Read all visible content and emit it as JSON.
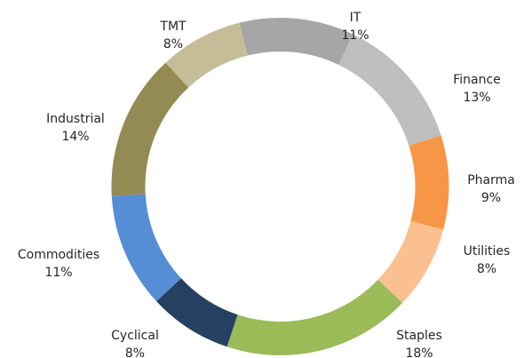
{
  "chart_data": {
    "type": "donut",
    "categories": [
      "IT",
      "Finance",
      "Pharma",
      "Utilities",
      "Staples",
      "Cyclical",
      "Commodities",
      "Industrial",
      "TMT"
    ],
    "values": [
      11,
      13,
      9,
      8,
      18,
      8,
      11,
      14,
      8
    ],
    "value_labels": [
      "11%",
      "13%",
      "9%",
      "8%",
      "18%",
      "8%",
      "11%",
      "14%",
      "8%"
    ],
    "colors": [
      "#a6a6a6",
      "#bfbfbf",
      "#f79646",
      "#fac090",
      "#9bbb59",
      "#254061",
      "#558ed5",
      "#948a54",
      "#c4bd97"
    ]
  }
}
